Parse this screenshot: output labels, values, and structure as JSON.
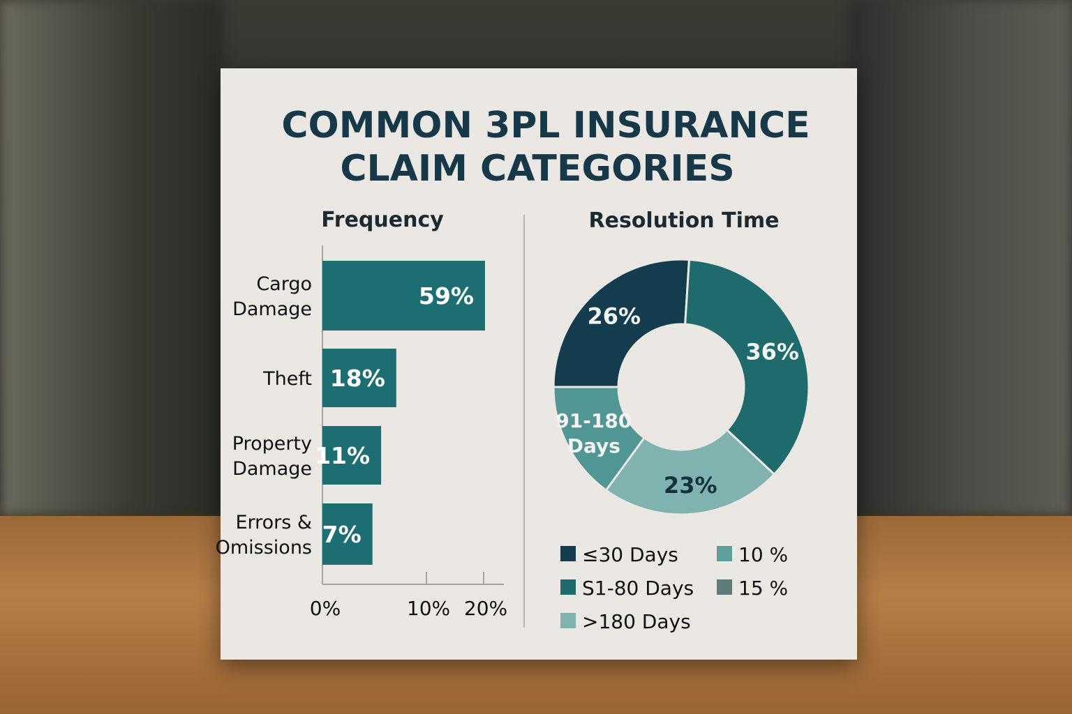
{
  "title_lines": [
    "COMMON 3PL INSURANCE",
    "CLAIM CATEGORIES"
  ],
  "colors": {
    "title": "#163848",
    "bar": "#1d6e72",
    "dark": "#133d4f",
    "teal": "#1f6a6d",
    "light": "#80b2b0",
    "mid": "#4f9695",
    "gray": "#5f7b7a"
  },
  "chart_data": [
    {
      "type": "bar",
      "orientation": "horizontal",
      "title": "Frequency",
      "categories": [
        [
          "Cargo",
          "Damage"
        ],
        [
          "Theft"
        ],
        [
          "Property",
          "Damage"
        ],
        [
          "Errors &",
          "Omissions"
        ]
      ],
      "values": [
        59,
        18,
        11,
        7
      ],
      "value_labels": [
        "59%",
        "18%",
        "11%",
        "7%"
      ],
      "x_ticks": [
        "0%",
        "10%",
        "20%"
      ]
    },
    {
      "type": "pie",
      "title": "Resolution Time",
      "slices": [
        {
          "label": "26%",
          "value": 26,
          "color": "#133d4f"
        },
        {
          "label": "36%",
          "value": 36,
          "color": "#1f6a6d"
        },
        {
          "label": "23%",
          "value": 23,
          "color": "#80b2b0"
        },
        {
          "label": "91-180 Days",
          "value": 15,
          "color": "#4f9695"
        }
      ],
      "legend": [
        {
          "label": "≤30 Days",
          "color": "#133d4f"
        },
        {
          "label": "10 %",
          "color": "#5e9f9d"
        },
        {
          "label": "S1-80 Days",
          "color": "#1f6a6d"
        },
        {
          "label": "15 %",
          "color": "#5f7b7a"
        },
        {
          "label": ">180 Days",
          "color": "#80b2b0"
        }
      ]
    }
  ]
}
